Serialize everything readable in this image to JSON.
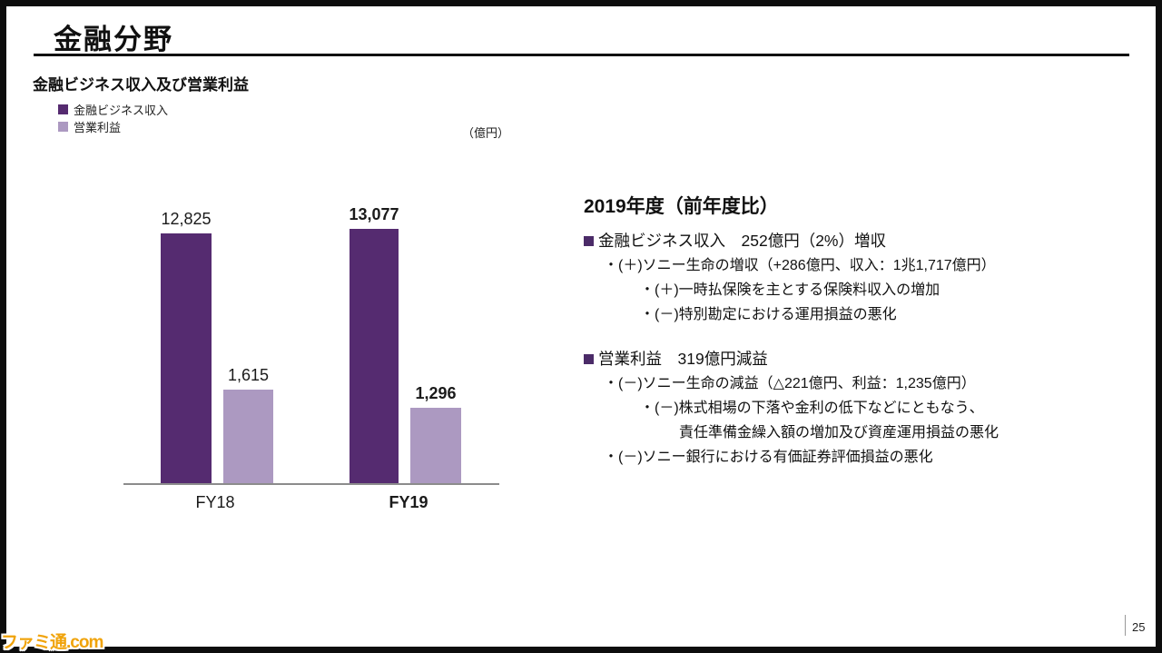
{
  "page": {
    "title": "金融分野",
    "subtitle": "金融ビジネス収入及び営業利益",
    "unit_label": "（億円）",
    "page_number": "25",
    "watermark": "ファミ通.com"
  },
  "colors": {
    "revenue_bar": "#552B70",
    "profit_bar": "#AC99C1",
    "bullet_square": "#4B2B68",
    "axis_line": "#8c8c8c"
  },
  "legend": {
    "items": [
      {
        "label": "金融ビジネス収入",
        "color": "#552B70"
      },
      {
        "label": "営業利益",
        "color": "#AC99C1"
      }
    ]
  },
  "chart_data": {
    "type": "bar",
    "title": "金融ビジネス収入及び営業利益",
    "unit": "億円",
    "categories": [
      "FY18",
      "FY19"
    ],
    "series": [
      {
        "name": "金融ビジネス収入",
        "color": "#552B70",
        "values": [
          12825,
          13077
        ],
        "labels": [
          "12,825",
          "13,077"
        ]
      },
      {
        "name": "営業利益",
        "color": "#AC99C1",
        "values": [
          1615,
          1296
        ],
        "labels": [
          "1,615",
          "1,296"
        ]
      }
    ],
    "emphasized_category": "FY19",
    "notes": "series drawn at different vertical scales; no gridlines; value labels above bars"
  },
  "commentary": {
    "heading": "2019年度（前年度比）",
    "blocks": [
      {
        "bullet": "金融ビジネス収入　252億円（2%）増収",
        "lines": [
          {
            "indent": 1,
            "text": "・(＋)ソニー生命の増収（+286億円、収入：1兆1,717億円）"
          },
          {
            "indent": 2,
            "text": "・(＋)一時払保険を主とする保険料収入の増加"
          },
          {
            "indent": 2,
            "text": "・(－)特別勘定における運用損益の悪化"
          }
        ]
      },
      {
        "bullet": "営業利益　319億円減益",
        "lines": [
          {
            "indent": 1,
            "text": "・(－)ソニー生命の減益（△221億円、利益：1,235億円）"
          },
          {
            "indent": 2,
            "text": "・(－)株式相場の下落や金利の低下などにともなう、"
          },
          {
            "indent": 3,
            "text": "責任準備金繰入額の増加及び資産運用損益の悪化"
          },
          {
            "indent": 1,
            "text": "・(－)ソニー銀行における有価証券評価損益の悪化"
          }
        ]
      }
    ]
  }
}
